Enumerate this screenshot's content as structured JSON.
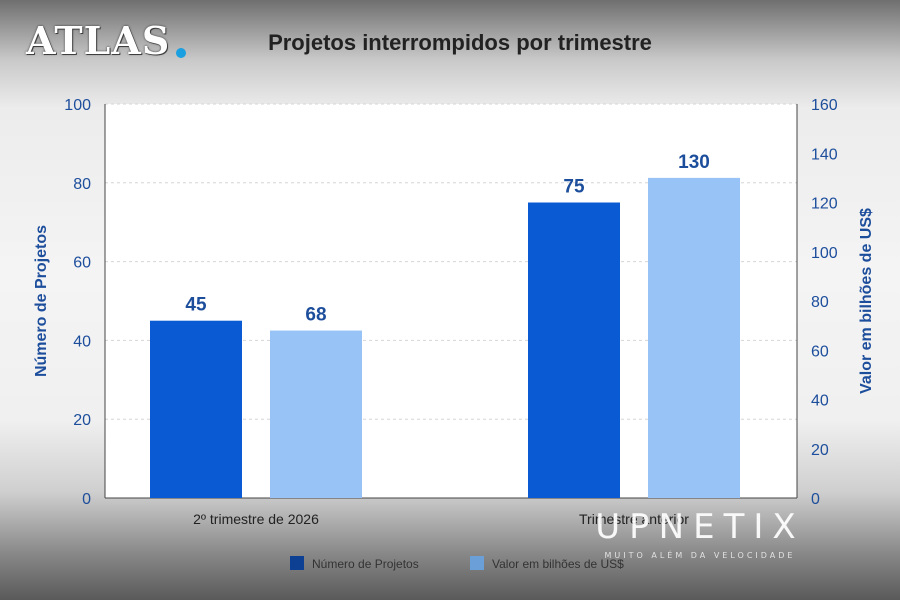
{
  "brand": "ATLAS",
  "watermark": {
    "name": "UPNETIX",
    "tagline": "MUITO ALÉM DA VELOCIDADE"
  },
  "colors": {
    "series1": "#0a5bd3",
    "series2": "#97c3f7",
    "axis": "#1d4e9c"
  },
  "chart_data": {
    "type": "bar",
    "title": "Projetos interrompidos por trimestre",
    "categories": [
      "2º trimestre de 2026",
      "Trimestre anterior"
    ],
    "series": [
      {
        "name": "Número de Projetos",
        "values": [
          45,
          75
        ],
        "axis": "left"
      },
      {
        "name": "Valor em bilhões de US$",
        "values": [
          68,
          130
        ],
        "axis": "right"
      }
    ],
    "ylabel": "Número de Projetos",
    "y2label": "Valor em bilhões de US$",
    "ylim": [
      0,
      100
    ],
    "y2lim": [
      0,
      160
    ],
    "yticks": [
      0,
      20,
      40,
      60,
      80,
      100
    ],
    "y2ticks": [
      0,
      20,
      40,
      60,
      80,
      100,
      120,
      140,
      160
    ],
    "grid": true,
    "legend": "bottom"
  }
}
